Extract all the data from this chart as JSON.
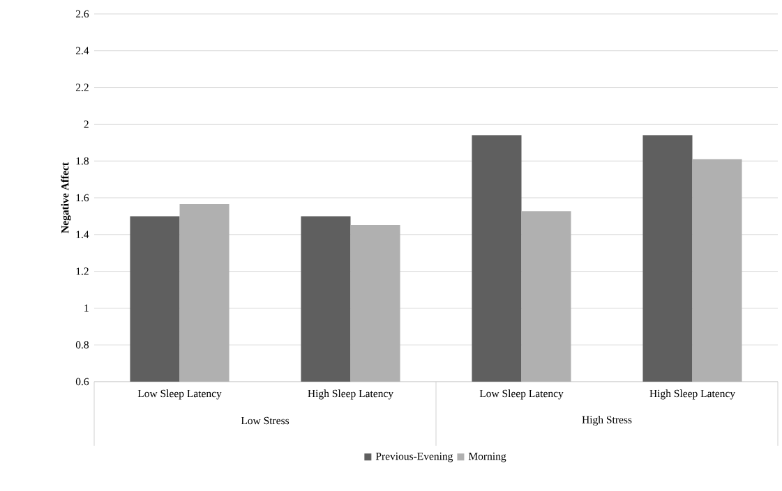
{
  "chart_data": {
    "type": "bar",
    "ylabel": "Negative Affect",
    "categories": [
      "Low Sleep Latency",
      "High Sleep Latency",
      "Low Sleep Latency",
      "High Sleep Latency"
    ],
    "annotations": [
      "Low Stress",
      "High Stress"
    ],
    "series": [
      {
        "name": "Previous-Evening",
        "color": "#5f5f5f",
        "values": [
          1.5,
          1.5,
          1.94,
          1.94
        ]
      },
      {
        "name": "Morning",
        "color": "#b0b0b0",
        "values": [
          1.566,
          1.452,
          1.527,
          1.81
        ]
      }
    ],
    "ylim": [
      0.6,
      2.6
    ],
    "yticks": [
      0.6,
      0.8,
      1,
      1.2,
      1.4,
      1.6,
      1.8,
      2,
      2.2,
      2.4,
      2.6
    ],
    "grid": "y",
    "legend": "bottom"
  }
}
